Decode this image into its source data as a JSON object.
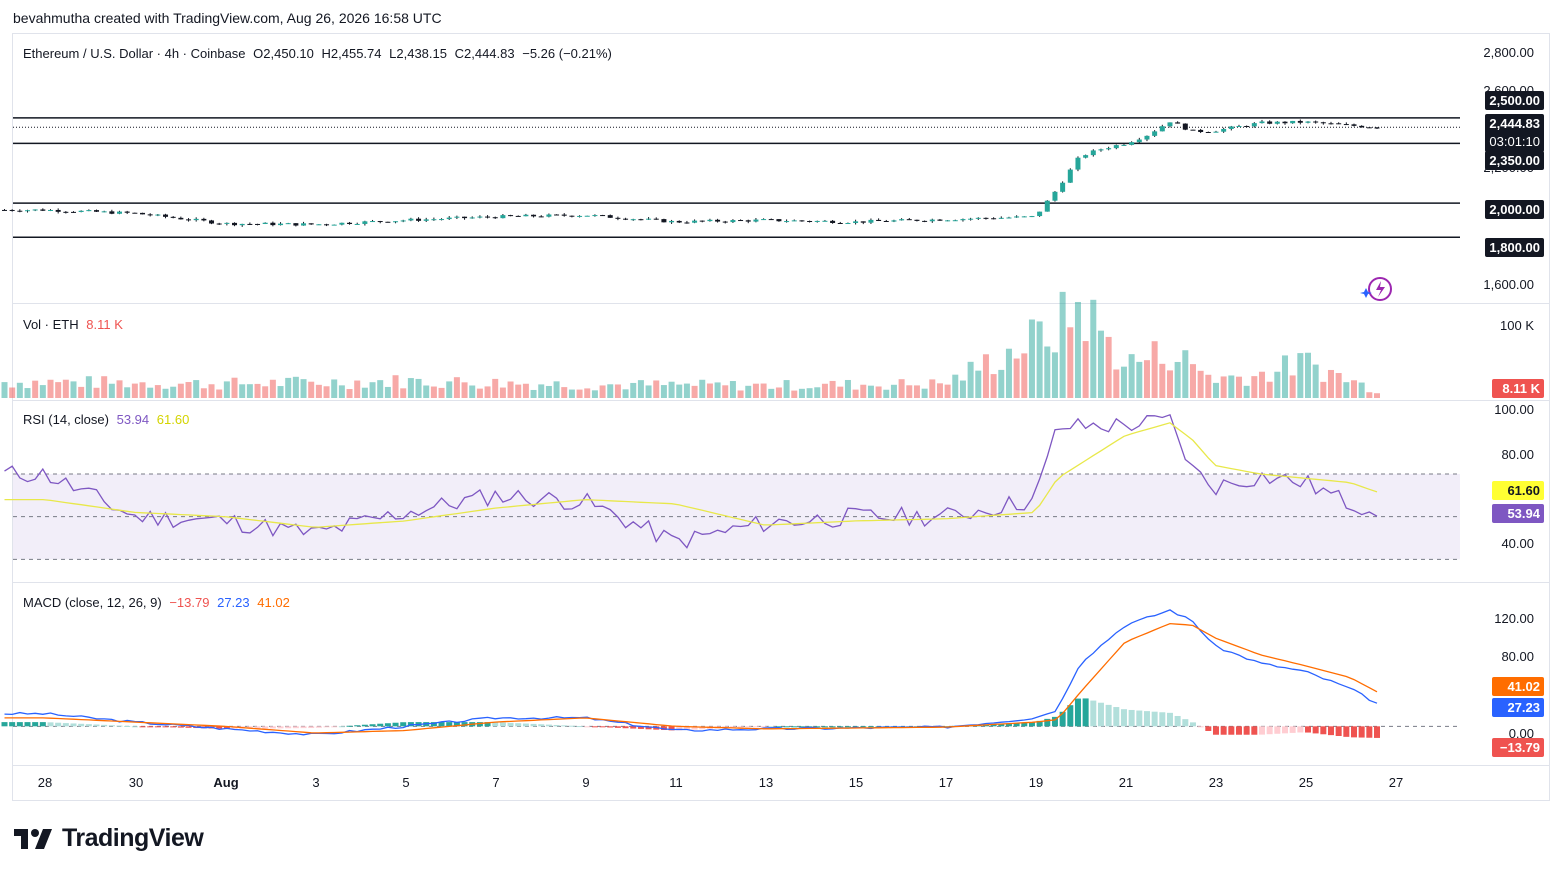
{
  "header": {
    "credit": "bevahmutha created with TradingView.com, Aug 26, 2026 16:58 UTC"
  },
  "price_legend": {
    "symbol": "Ethereum / U.S. Dollar · 4h · Coinbase",
    "open": "O2,450.10",
    "high": "H2,455.74",
    "low": "L2,438.15",
    "close": "C2,444.83",
    "change": "−5.26 (−0.21%)"
  },
  "vol_legend": {
    "label": "Vol · ETH",
    "value": "8.11 K"
  },
  "rsi_legend": {
    "label": "RSI (14, close)",
    "rsi": "53.94",
    "ma": "61.60"
  },
  "macd_legend": {
    "label": "MACD (close, 12, 26, 9)",
    "hist": "−13.79",
    "macd": "27.23",
    "signal": "41.02"
  },
  "price_axis": [
    "2,800.00",
    "2,600.00",
    "2,200.00",
    "1,600.00"
  ],
  "price_tags": {
    "r2500": "2,500.00",
    "last": "2,444.83",
    "countdown": "03:01:10",
    "r2350": "2,350.00",
    "r2000": "2,000.00",
    "r1800": "1,800.00"
  },
  "vol_axis": {
    "top": "100 K",
    "tag": "8.11 K"
  },
  "rsi_axis": {
    "t100": "100.00",
    "t80": "80.00",
    "t40": "40.00",
    "tag_ma": "61.60",
    "tag_rsi": "53.94"
  },
  "macd_axis": {
    "t120": "120.00",
    "t80": "80.00",
    "t0": "0.00",
    "tag_signal": "41.02",
    "tag_macd": "27.23",
    "tag_hist": "−13.79"
  },
  "x_axis": [
    "28",
    "30",
    "Aug",
    "3",
    "5",
    "7",
    "9",
    "11",
    "13",
    "15",
    "17",
    "19",
    "21",
    "23",
    "25",
    "27"
  ],
  "branding": {
    "logo_text": "TradingView"
  },
  "colors": {
    "up": "#26a69a",
    "down": "#ef5350",
    "rsi": "#7e57c2",
    "rsi_ma": "#e8e84a",
    "macd": "#2962ff",
    "signal": "#ff6d00"
  },
  "chart_data": [
    {
      "type": "candlestick",
      "title": "Ethereum / U.S. Dollar · 4h · Coinbase",
      "ylim": [
        1520,
        2880
      ],
      "horizontal_levels": [
        2500,
        2350,
        2000,
        1800
      ],
      "last_price": 2444.83,
      "x": [
        "Jul 28",
        "Jul 30",
        "Aug 1",
        "Aug 3",
        "Aug 5",
        "Aug 7",
        "Aug 9",
        "Aug 11",
        "Aug 13",
        "Aug 15",
        "Aug 17",
        "Aug 19",
        "Aug 19.5",
        "Aug 20",
        "Aug 20.5",
        "Aug 21",
        "Aug 21.5",
        "Aug 22",
        "Aug 22.5",
        "Aug 23",
        "Aug 24",
        "Aug 25",
        "Aug 26",
        "Aug 26.6"
      ],
      "close": [
        1960,
        1940,
        1880,
        1875,
        1900,
        1920,
        1930,
        1890,
        1900,
        1890,
        1905,
        1920,
        2085,
        2275,
        2320,
        2350,
        2400,
        2480,
        2420,
        2425,
        2470,
        2475,
        2455,
        2445
      ]
    },
    {
      "type": "bar",
      "title": "Vol · ETH",
      "ylim": [
        0,
        110000
      ],
      "categories": [
        "Jul 28",
        "Aug 1",
        "Aug 5",
        "Aug 9",
        "Aug 13",
        "Aug 17",
        "Aug 19.5",
        "Aug 20",
        "Aug 21",
        "Aug 22",
        "Aug 23",
        "Aug 24",
        "Aug 25",
        "Aug 26.6"
      ],
      "values": [
        18000,
        16000,
        19000,
        15000,
        14000,
        16000,
        78000,
        105000,
        38000,
        52000,
        22000,
        26000,
        40000,
        8110
      ]
    },
    {
      "type": "line",
      "title": "RSI (14, close)",
      "ylim": [
        25,
        100
      ],
      "bands": [
        70,
        50,
        30
      ],
      "x": [
        "Jul 28",
        "Jul 30",
        "Aug 1",
        "Aug 3",
        "Aug 5",
        "Aug 7",
        "Aug 9",
        "Aug 11",
        "Aug 13",
        "Aug 15",
        "Aug 17",
        "Aug 19",
        "Aug 19.5",
        "Aug 21",
        "Aug 22",
        "Aug 22.5",
        "Aug 23",
        "Aug 24",
        "Aug 25",
        "Aug 26",
        "Aug 26.6"
      ],
      "series": [
        {
          "name": "RSI",
          "values": [
            70,
            50,
            48,
            42,
            52,
            60,
            57,
            38,
            47,
            50,
            50,
            58,
            92,
            93,
            95,
            72,
            64,
            69,
            66,
            56,
            53.94
          ]
        },
        {
          "name": "MA",
          "values": [
            58,
            52,
            50,
            45,
            48,
            54,
            58,
            56,
            46,
            48,
            49,
            52,
            68,
            88,
            94,
            86,
            74,
            70,
            68,
            66,
            61.6
          ]
        }
      ]
    },
    {
      "type": "line",
      "title": "MACD (close, 12, 26, 9)",
      "ylim": [
        -40,
        150
      ],
      "x": [
        "Jul 28",
        "Jul 30",
        "Aug 1",
        "Aug 3",
        "Aug 5",
        "Aug 7",
        "Aug 9",
        "Aug 11",
        "Aug 13",
        "Aug 15",
        "Aug 17",
        "Aug 19",
        "Aug 19.5",
        "Aug 20",
        "Aug 21",
        "Aug 22",
        "Aug 22.5",
        "Aug 23",
        "Aug 24",
        "Aug 25",
        "Aug 26",
        "Aug 26.6"
      ],
      "series": [
        {
          "name": "MACD",
          "values": [
            15,
            5,
            -3,
            -10,
            0,
            10,
            10,
            -5,
            -3,
            -2,
            -1,
            10,
            20,
            75,
            120,
            138,
            125,
            95,
            75,
            65,
            45,
            27.23
          ]
        },
        {
          "name": "Signal",
          "values": [
            10,
            5,
            0,
            -8,
            -5,
            5,
            10,
            0,
            -3,
            -2,
            -1,
            5,
            8,
            40,
            100,
            122,
            120,
            105,
            85,
            72,
            58,
            41.02
          ]
        },
        {
          "name": "Histogram",
          "values": [
            5,
            0,
            -3,
            -2,
            5,
            5,
            0,
            -5,
            0,
            0,
            0,
            5,
            12,
            35,
            20,
            16,
            5,
            -10,
            -10,
            -7,
            -13,
            -13.79
          ]
        }
      ]
    }
  ]
}
